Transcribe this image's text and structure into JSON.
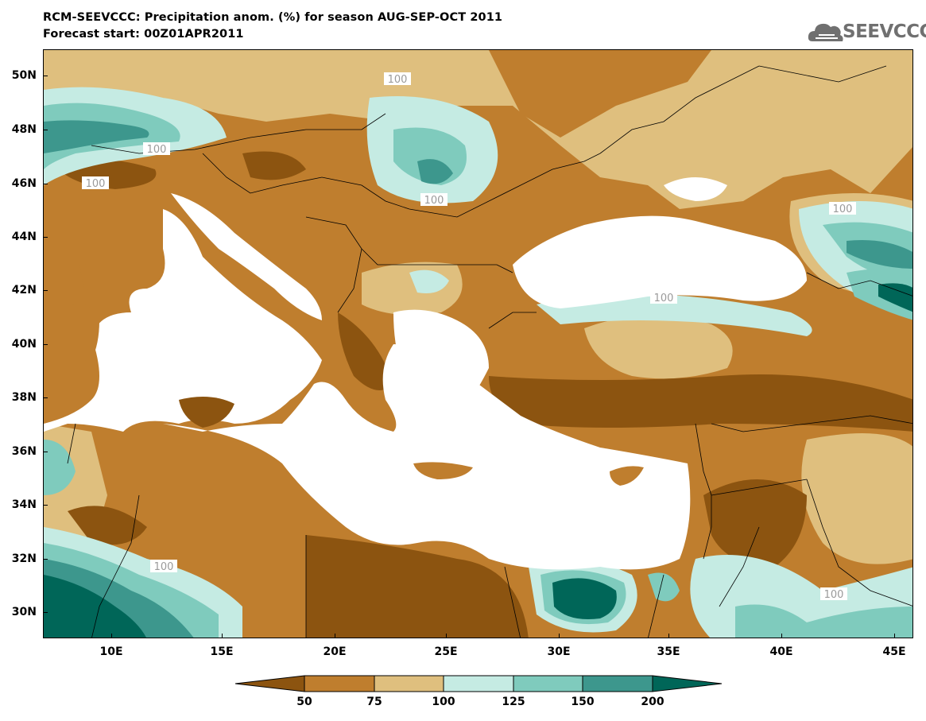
{
  "title_line1": "RCM-SEEVCCC: Precipitation anom. (%) for season AUG-SEP-OCT 2011",
  "title_line2": "Forecast start: 00Z01APR2011",
  "logo_text": "SEEVCCC",
  "lat_labels": [
    "50N",
    "48N",
    "46N",
    "44N",
    "42N",
    "40N",
    "38N",
    "36N",
    "34N",
    "32N",
    "30N"
  ],
  "lon_labels": [
    "10E",
    "15E",
    "20E",
    "25E",
    "30E",
    "35E",
    "40E",
    "45E"
  ],
  "contour_label": "100",
  "colorbar": {
    "labels": [
      "50",
      "75",
      "100",
      "125",
      "150",
      "200"
    ],
    "colors": [
      "#8c5410",
      "#bf7e2e",
      "#dfbf7e",
      "#c5ebe3",
      "#7fcbbd",
      "#3d978d",
      "#006658"
    ]
  },
  "map_colors": {
    "very_dry": "#8c5410",
    "dry": "#bf7e2e",
    "slightly_dry": "#dfbf7e",
    "slightly_wet": "#c5ebe3",
    "wet": "#7fcbbd",
    "very_wet": "#3d978d",
    "extreme_wet": "#006658",
    "sea": "#ffffff"
  }
}
